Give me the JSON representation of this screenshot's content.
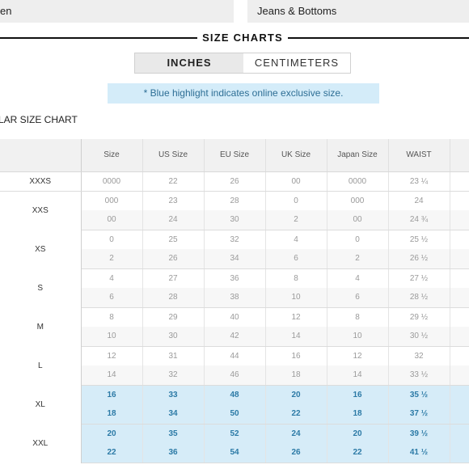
{
  "top_tabs": [
    {
      "label": "en"
    },
    {
      "label": "Jeans & Bottoms"
    }
  ],
  "size_charts": {
    "title": "SIZE CHARTS",
    "units": [
      {
        "label": "INCHES",
        "active": true
      },
      {
        "label": "CENTIMETERS",
        "active": false
      }
    ],
    "note": "* Blue highlight indicates online exclusive size.",
    "chart_heading": "LAR SIZE CHART"
  },
  "colors": {
    "highlight_bg": "#d6ecf8",
    "highlight_text": "#2c7aa6",
    "note_bg": "#d4ecf9"
  },
  "table": {
    "headers": [
      "",
      "Size",
      "US Size",
      "EU Size",
      "UK Size",
      "Japan Size",
      "WAIST",
      ""
    ],
    "groups": [
      {
        "label": "XXXS",
        "highlight": false,
        "rows": [
          [
            "0000",
            "22",
            "26",
            "00",
            "0000",
            "23 ¼"
          ]
        ]
      },
      {
        "label": "XXS",
        "highlight": false,
        "rows": [
          [
            "000",
            "23",
            "28",
            "0",
            "000",
            "24"
          ],
          [
            "00",
            "24",
            "30",
            "2",
            "00",
            "24 ¾"
          ]
        ]
      },
      {
        "label": "XS",
        "highlight": false,
        "rows": [
          [
            "0",
            "25",
            "32",
            "4",
            "0",
            "25 ½"
          ],
          [
            "2",
            "26",
            "34",
            "6",
            "2",
            "26 ½"
          ]
        ]
      },
      {
        "label": "S",
        "highlight": false,
        "rows": [
          [
            "4",
            "27",
            "36",
            "8",
            "4",
            "27 ½"
          ],
          [
            "6",
            "28",
            "38",
            "10",
            "6",
            "28 ½"
          ]
        ]
      },
      {
        "label": "M",
        "highlight": false,
        "rows": [
          [
            "8",
            "29",
            "40",
            "12",
            "8",
            "29 ½"
          ],
          [
            "10",
            "30",
            "42",
            "14",
            "10",
            "30 ½"
          ]
        ]
      },
      {
        "label": "L",
        "highlight": false,
        "rows": [
          [
            "12",
            "31",
            "44",
            "16",
            "12",
            "32"
          ],
          [
            "14",
            "32",
            "46",
            "18",
            "14",
            "33 ½"
          ]
        ]
      },
      {
        "label": "XL",
        "highlight": true,
        "rows": [
          [
            "16",
            "33",
            "48",
            "20",
            "16",
            "35 ½"
          ],
          [
            "18",
            "34",
            "50",
            "22",
            "18",
            "37 ½"
          ]
        ]
      },
      {
        "label": "XXL",
        "highlight": true,
        "rows": [
          [
            "20",
            "35",
            "52",
            "24",
            "20",
            "39 ½"
          ],
          [
            "22",
            "36",
            "54",
            "26",
            "22",
            "41 ½"
          ]
        ]
      }
    ]
  }
}
